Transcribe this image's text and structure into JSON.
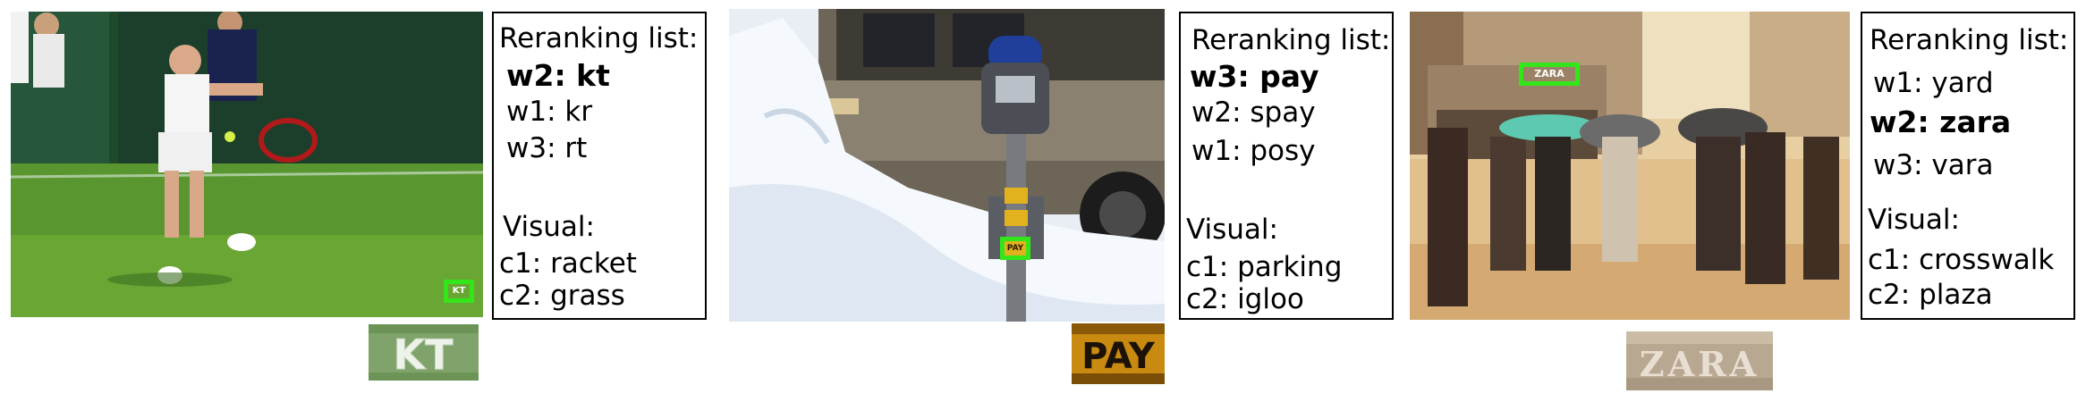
{
  "panels": [
    {
      "id": "tennis",
      "header": "Reranking list:",
      "rerank": [
        {
          "label": "w2: kt",
          "bold": true
        },
        {
          "label": "w1: kr",
          "bold": false
        },
        {
          "label": "w3: rt",
          "bold": false
        }
      ],
      "visual_header": "Visual:",
      "visual": [
        "c1: racket",
        "c2: grass"
      ],
      "photo_text": "KT",
      "crop_text": "KT"
    },
    {
      "id": "parking",
      "header": "Reranking list:",
      "rerank": [
        {
          "label": "w3: pay",
          "bold": true
        },
        {
          "label": "w2: spay",
          "bold": false
        },
        {
          "label": "w1: posy",
          "bold": false
        }
      ],
      "visual_header": "Visual:",
      "visual": [
        "c1: parking",
        "c2: igloo"
      ],
      "photo_text": "PAY",
      "crop_text": "PAY"
    },
    {
      "id": "street",
      "header": "Reranking list:",
      "rerank": [
        {
          "label": "w1: yard",
          "bold": false
        },
        {
          "label": "w2: zara",
          "bold": true
        },
        {
          "label": "w3: vara",
          "bold": false
        }
      ],
      "visual_header": "Visual:",
      "visual": [
        "c1: crosswalk",
        "c2: plaza"
      ],
      "photo_text": "ZARA",
      "crop_text": "ZARA"
    }
  ],
  "colors": {
    "bbox": "#33e61a",
    "box_border": "#000000"
  }
}
